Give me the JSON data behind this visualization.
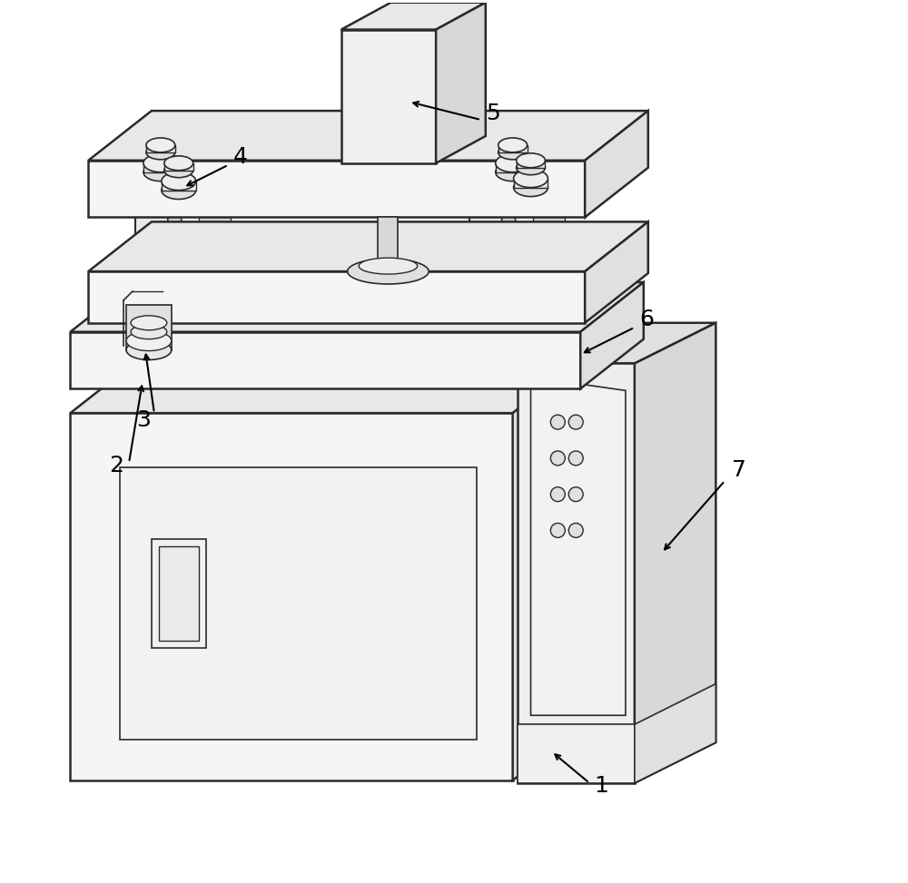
{
  "background_color": "#ffffff",
  "line_color": "#2a2a2a",
  "line_width": 1.8,
  "fig_width": 10.0,
  "fig_height": 9.73,
  "annotation_fontsize": 18
}
